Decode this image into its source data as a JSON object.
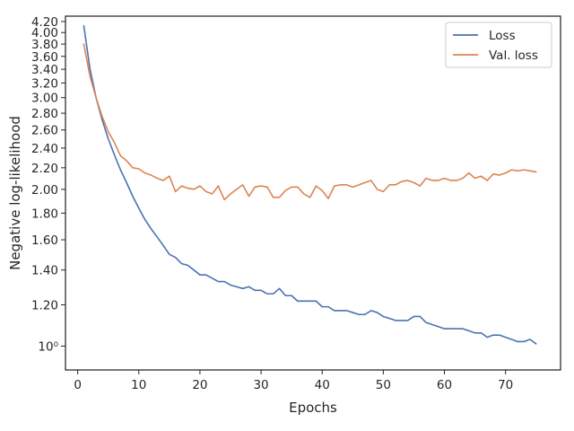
{
  "chart_data": {
    "type": "line",
    "xlabel": "Epochs",
    "ylabel": "Negative log-likelihood",
    "xlim": [
      -2,
      79
    ],
    "ylim": [
      0.9,
      4.3
    ],
    "yscale": "log",
    "x_ticks": [
      0,
      10,
      20,
      30,
      40,
      50,
      60,
      70
    ],
    "x_tick_labels": [
      "0",
      "10",
      "20",
      "30",
      "40",
      "50",
      "60",
      "70"
    ],
    "y_ticks": [
      1.0,
      1.2,
      1.4,
      1.6,
      1.8,
      2.0,
      2.2,
      2.4,
      2.6,
      2.8,
      3.0,
      3.2,
      3.4,
      3.6,
      3.8,
      4.0,
      4.2
    ],
    "y_tick_labels": [
      "10⁰",
      "1.20",
      "1.40",
      "1.60",
      "1.80",
      "2.00",
      "2.20",
      "2.40",
      "2.60",
      "2.80",
      "3.00",
      "3.20",
      "3.40",
      "3.60",
      "3.80",
      "4.00",
      "4.20"
    ],
    "grid": false,
    "legend_position": "top-right",
    "series": [
      {
        "name": "Loss",
        "color": "#4c72b0",
        "x": [
          1,
          2,
          3,
          4,
          5,
          6,
          7,
          8,
          9,
          10,
          11,
          12,
          13,
          14,
          15,
          16,
          17,
          18,
          19,
          20,
          21,
          22,
          23,
          24,
          25,
          26,
          27,
          28,
          29,
          30,
          31,
          32,
          33,
          34,
          35,
          36,
          37,
          38,
          39,
          40,
          41,
          42,
          43,
          44,
          45,
          46,
          47,
          48,
          49,
          50,
          51,
          52,
          53,
          54,
          55,
          56,
          57,
          58,
          59,
          60,
          61,
          62,
          63,
          64,
          65,
          66,
          67,
          68,
          69,
          70,
          71,
          72,
          73,
          74,
          75
        ],
        "values": [
          4.12,
          3.41,
          3.0,
          2.72,
          2.5,
          2.33,
          2.18,
          2.06,
          1.94,
          1.84,
          1.75,
          1.68,
          1.62,
          1.56,
          1.5,
          1.48,
          1.44,
          1.43,
          1.4,
          1.37,
          1.37,
          1.35,
          1.33,
          1.33,
          1.31,
          1.3,
          1.29,
          1.3,
          1.28,
          1.28,
          1.26,
          1.26,
          1.29,
          1.25,
          1.25,
          1.22,
          1.22,
          1.22,
          1.22,
          1.19,
          1.19,
          1.17,
          1.17,
          1.17,
          1.16,
          1.15,
          1.15,
          1.17,
          1.16,
          1.14,
          1.13,
          1.12,
          1.12,
          1.12,
          1.14,
          1.14,
          1.11,
          1.1,
          1.09,
          1.08,
          1.08,
          1.08,
          1.08,
          1.07,
          1.06,
          1.06,
          1.04,
          1.05,
          1.05,
          1.04,
          1.03,
          1.02,
          1.02,
          1.03,
          1.01
        ]
      },
      {
        "name": "Val. loss",
        "color": "#dd8452",
        "x": [
          1,
          2,
          3,
          4,
          5,
          6,
          7,
          8,
          9,
          10,
          11,
          12,
          13,
          14,
          15,
          16,
          17,
          18,
          19,
          20,
          21,
          22,
          23,
          24,
          25,
          26,
          27,
          28,
          29,
          30,
          31,
          32,
          33,
          34,
          35,
          36,
          37,
          38,
          39,
          40,
          41,
          42,
          43,
          44,
          45,
          46,
          47,
          48,
          49,
          50,
          51,
          52,
          53,
          54,
          55,
          56,
          57,
          58,
          59,
          60,
          61,
          62,
          63,
          64,
          65,
          66,
          67,
          68,
          69,
          70,
          71,
          72,
          73,
          74,
          75
        ],
        "values": [
          3.8,
          3.3,
          3.0,
          2.76,
          2.58,
          2.46,
          2.32,
          2.27,
          2.2,
          2.19,
          2.15,
          2.13,
          2.1,
          2.08,
          2.12,
          1.98,
          2.03,
          2.01,
          2.0,
          2.03,
          1.98,
          1.96,
          2.03,
          1.91,
          1.96,
          2.0,
          2.04,
          1.94,
          2.02,
          2.03,
          2.02,
          1.93,
          1.93,
          1.99,
          2.02,
          2.02,
          1.96,
          1.93,
          2.03,
          1.99,
          1.92,
          2.03,
          2.04,
          2.04,
          2.02,
          2.04,
          2.06,
          2.08,
          2.0,
          1.98,
          2.04,
          2.04,
          2.07,
          2.08,
          2.06,
          2.03,
          2.1,
          2.08,
          2.08,
          2.1,
          2.08,
          2.08,
          2.1,
          2.15,
          2.1,
          2.12,
          2.08,
          2.14,
          2.13,
          2.15,
          2.18,
          2.17,
          2.18,
          2.17,
          2.16
        ]
      }
    ]
  }
}
